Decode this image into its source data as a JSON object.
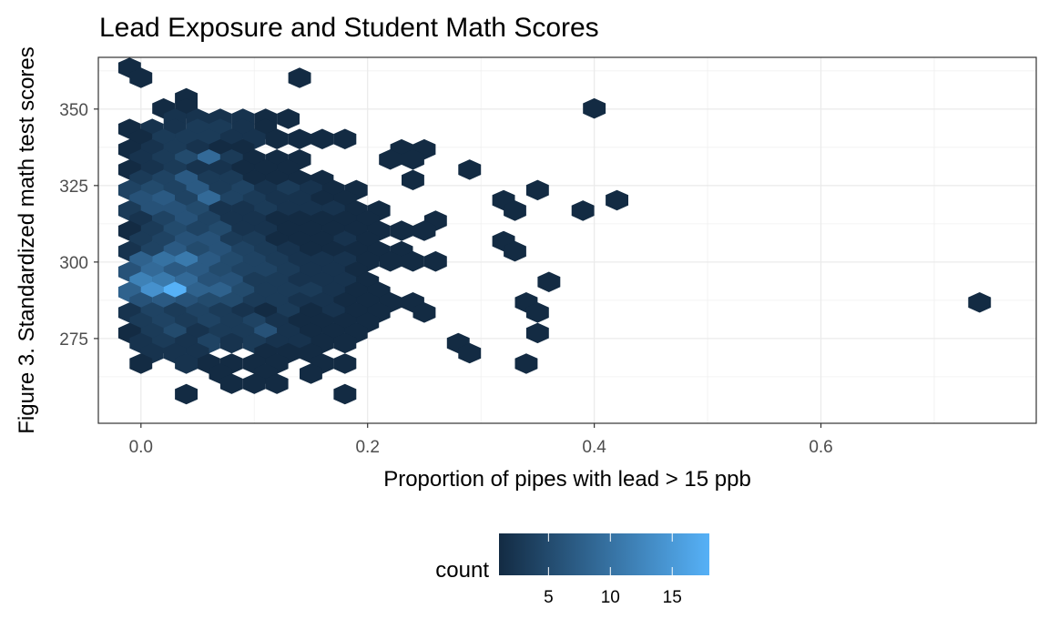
{
  "chart_data": {
    "type": "heatmap",
    "subtype": "hexbin",
    "title": "Lead Exposure and Student Math Scores",
    "xlabel": "Proportion of pipes with lead > 15 ppb",
    "ylabel": "Figure 3. Standardized math test scores",
    "xlim": [
      -0.0376,
      0.79
    ],
    "ylim": [
      247.3,
      366.9
    ],
    "x_ticks": [
      0.0,
      0.2,
      0.4,
      0.6
    ],
    "x_tick_labels": [
      "0.0",
      "0.2",
      "0.4",
      "0.6"
    ],
    "y_ticks": [
      275,
      300,
      325,
      350
    ],
    "y_tick_labels": [
      "275",
      "300",
      "325",
      "350"
    ],
    "grid": true,
    "legend": {
      "title": "count",
      "placement": "bottom",
      "range": [
        1,
        18
      ],
      "ticks": [
        5,
        10,
        15
      ],
      "tick_labels": [
        "5",
        "10",
        "15"
      ],
      "low_color": "#132B43",
      "high_color": "#56B1F7"
    },
    "hex_width_x": 0.02,
    "hex_height_y": 6.7,
    "rows": [
      {
        "y": 363.5,
        "x_start": -0.01,
        "counts": [
          1
        ]
      },
      {
        "y": 360.2,
        "x_start": 0.0,
        "counts": [
          1,
          0,
          0,
          0,
          0,
          0,
          0,
          1
        ]
      },
      {
        "y": 353.5,
        "x_start": 0.04,
        "counts": [
          1
        ]
      },
      {
        "y": 350.2,
        "x_start": 0.02,
        "counts": [
          1,
          1,
          0,
          0,
          0,
          0,
          0,
          0,
          0,
          0,
          0,
          0,
          0,
          0,
          0,
          0,
          0,
          0,
          0,
          1
        ]
      },
      {
        "y": 346.8,
        "x_start": 0.03,
        "counts": [
          2,
          2,
          2,
          2,
          1,
          1
        ]
      },
      {
        "y": 343.5,
        "x_start": -0.01,
        "counts": [
          1,
          2,
          2,
          3,
          3,
          2,
          1
        ]
      },
      {
        "y": 340.2,
        "x_start": 0.0,
        "counts": [
          1,
          3,
          3,
          3,
          2,
          2,
          1,
          1,
          1,
          1
        ]
      },
      {
        "y": 336.8,
        "x_start": -0.01,
        "counts": [
          1,
          2,
          3,
          2,
          1,
          1,
          0,
          0,
          0,
          0,
          0,
          0,
          1,
          1
        ]
      },
      {
        "y": 333.5,
        "x_start": 0.0,
        "counts": [
          2,
          3,
          5,
          9,
          3,
          1,
          1,
          1,
          0,
          0,
          0,
          1,
          1
        ]
      },
      {
        "y": 330.2,
        "x_start": -0.01,
        "counts": [
          1,
          2,
          3,
          2,
          2,
          1,
          1,
          1,
          0,
          0,
          0,
          0,
          0,
          0,
          0,
          1
        ]
      },
      {
        "y": 326.8,
        "x_start": 0.0,
        "counts": [
          3,
          4,
          7,
          3,
          3,
          1,
          1,
          1,
          1,
          0,
          0,
          0,
          1
        ]
      },
      {
        "y": 323.5,
        "x_start": -0.01,
        "counts": [
          4,
          5,
          4,
          7,
          3,
          4,
          2,
          3,
          2,
          1,
          1,
          0,
          0,
          0,
          0,
          0,
          0,
          0,
          1
        ]
      },
      {
        "y": 320.2,
        "x_start": 0.0,
        "counts": [
          6,
          7,
          4,
          9,
          4,
          3,
          2,
          2,
          1,
          1,
          0,
          0,
          0,
          0,
          0,
          0,
          1,
          0,
          0,
          0,
          0,
          1
        ]
      },
      {
        "y": 316.8,
        "x_start": -0.01,
        "counts": [
          3,
          6,
          6,
          5,
          2,
          2,
          3,
          2,
          2,
          2,
          1,
          1,
          0,
          0,
          0,
          0,
          0,
          1,
          0,
          0,
          1
        ]
      },
      {
        "y": 313.5,
        "x_start": 0.0,
        "counts": [
          2,
          4,
          6,
          4,
          2,
          2,
          1,
          1,
          1,
          1,
          1,
          0,
          0,
          1
        ]
      },
      {
        "y": 310.2,
        "x_start": -0.01,
        "counts": [
          1,
          3,
          5,
          4,
          5,
          2,
          2,
          1,
          1,
          1,
          1,
          1,
          1,
          1
        ]
      },
      {
        "y": 306.8,
        "x_start": 0.0,
        "counts": [
          3,
          4,
          6,
          6,
          3,
          3,
          1,
          1,
          1,
          2,
          1,
          0,
          0,
          0,
          0,
          0,
          1
        ]
      },
      {
        "y": 303.5,
        "x_start": -0.01,
        "counts": [
          2,
          4,
          7,
          5,
          6,
          4,
          3,
          2,
          1,
          1,
          1,
          1,
          1,
          0,
          0,
          0,
          0,
          1
        ]
      },
      {
        "y": 300.2,
        "x_start": 0.0,
        "counts": [
          8,
          10,
          11,
          7,
          5,
          4,
          3,
          2,
          2,
          2,
          1,
          1,
          1,
          1
        ]
      },
      {
        "y": 296.8,
        "x_start": -0.01,
        "counts": [
          6,
          9,
          7,
          7,
          5,
          4,
          4,
          3,
          2,
          2,
          1
        ]
      },
      {
        "y": 293.5,
        "x_start": 0.0,
        "counts": [
          12,
          11,
          9,
          6,
          6,
          3,
          3,
          2,
          2,
          2,
          1,
          0,
          0,
          0,
          0,
          0,
          0,
          0,
          1
        ]
      },
      {
        "y": 290.2,
        "x_start": -0.01,
        "counts": [
          8,
          14,
          18,
          8,
          8,
          5,
          3,
          3,
          3,
          2,
          1,
          1
        ]
      },
      {
        "y": 286.8,
        "x_start": 0.0,
        "counts": [
          6,
          7,
          6,
          5,
          5,
          3,
          3,
          2,
          2,
          1,
          1,
          1,
          1,
          0,
          0,
          0,
          0,
          1,
          0,
          0,
          0,
          0,
          0,
          0,
          0,
          0,
          0,
          0,
          0,
          0,
          0,
          0,
          0,
          0,
          0,
          0,
          0,
          1
        ]
      },
      {
        "y": 283.5,
        "x_start": -0.01,
        "counts": [
          2,
          4,
          3,
          4,
          3,
          2,
          1,
          3,
          1,
          2,
          1,
          1,
          0,
          1,
          0,
          0,
          0,
          0,
          1
        ]
      },
      {
        "y": 280.2,
        "x_start": 0.0,
        "counts": [
          3,
          4,
          3,
          4,
          3,
          4,
          2,
          1,
          1,
          1,
          1
        ]
      },
      {
        "y": 276.8,
        "x_start": -0.01,
        "counts": [
          1,
          3,
          5,
          2,
          3,
          3,
          6,
          2,
          1,
          1,
          1,
          0,
          0,
          0,
          0,
          0,
          0,
          0,
          1
        ]
      },
      {
        "y": 273.5,
        "x_start": 0.0,
        "counts": [
          2,
          3,
          2,
          4,
          2,
          3,
          2,
          2,
          1,
          1,
          0,
          0,
          0,
          0,
          1
        ]
      },
      {
        "y": 270.2,
        "x_start": 0.01,
        "counts": [
          2,
          2,
          2,
          0,
          0,
          1,
          1,
          1,
          0,
          0,
          0,
          0,
          0,
          0,
          1
        ]
      },
      {
        "y": 266.8,
        "x_start": 0.0,
        "counts": [
          1,
          0,
          2,
          1,
          1,
          1,
          1,
          0,
          1,
          1,
          0,
          0,
          0,
          0,
          0,
          0,
          0,
          1
        ]
      },
      {
        "y": 263.5,
        "x_start": 0.07,
        "counts": [
          1,
          0,
          1,
          0,
          1
        ]
      },
      {
        "y": 260.2,
        "x_start": 0.08,
        "counts": [
          1,
          1,
          1
        ]
      },
      {
        "y": 256.8,
        "x_start": 0.04,
        "counts": [
          1,
          0,
          0,
          0,
          0,
          0,
          0,
          1
        ]
      }
    ]
  }
}
